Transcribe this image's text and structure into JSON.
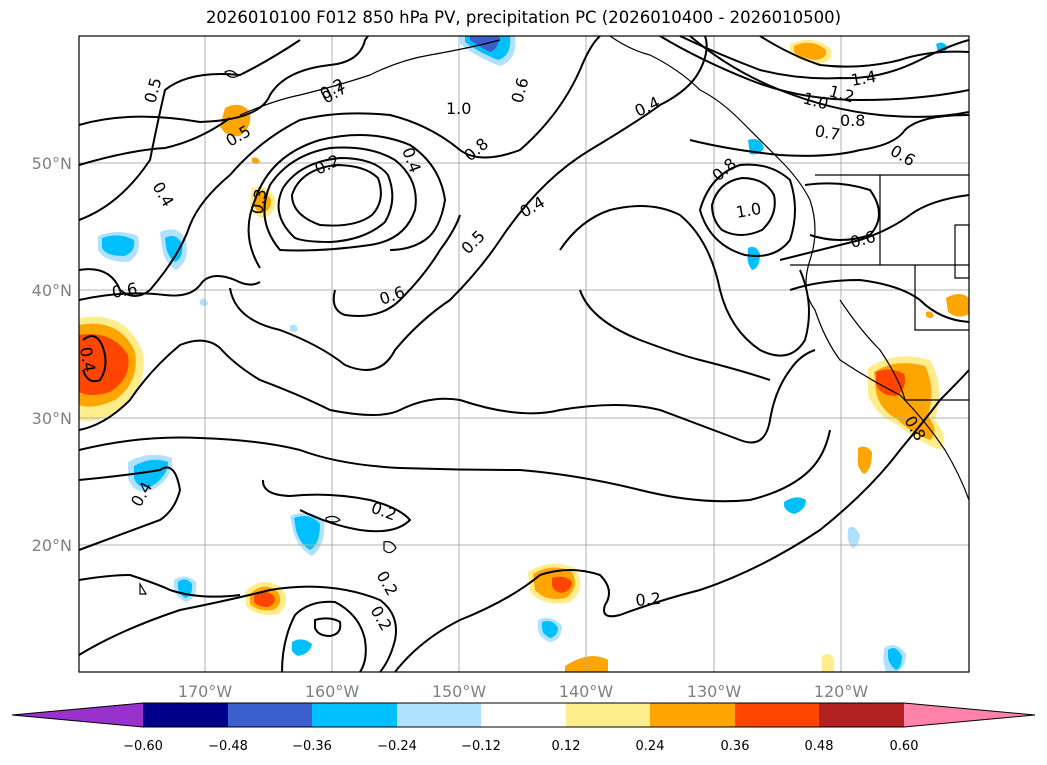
{
  "title": "2026010100 F012 850 hPa PV, precipitation PC (2026010400 - 2026010500)",
  "lat_labels": [
    "50°N",
    "40°N",
    "30°N",
    "20°N"
  ],
  "lon_labels": [
    "170°W",
    "160°W",
    "150°W",
    "140°W",
    "130°W",
    "120°W"
  ],
  "contour_labels": [
    "0.5",
    "0.5",
    "0.4",
    "0.6",
    "0.4",
    "0.3",
    "0.2",
    "0.4",
    "1.0",
    "0.8",
    "0.6",
    "0.5",
    "0.4",
    "0.6",
    "0.4",
    "0.7",
    "1.0",
    "1.2",
    "1.4",
    "0.7",
    "0.8",
    "0.6",
    "0.8",
    "1.0",
    "0.6",
    "0.4",
    "0.2",
    "0.2",
    "0.2",
    "0.2",
    "0.2",
    "0.8"
  ],
  "colorbar": {
    "colors": [
      "#9932CC",
      "#00008B",
      "#3A5FCD",
      "#00BFFF",
      "#B0E2FF",
      "#FFFFFF",
      "#FFEC8B",
      "#FFA500",
      "#FF4500",
      "#B22222",
      "#FF82AB"
    ],
    "labels": [
      "−0.60",
      "−0.48",
      "−0.36",
      "−0.24",
      "−0.12",
      "0.12",
      "0.24",
      "0.36",
      "0.48",
      "0.60"
    ]
  }
}
